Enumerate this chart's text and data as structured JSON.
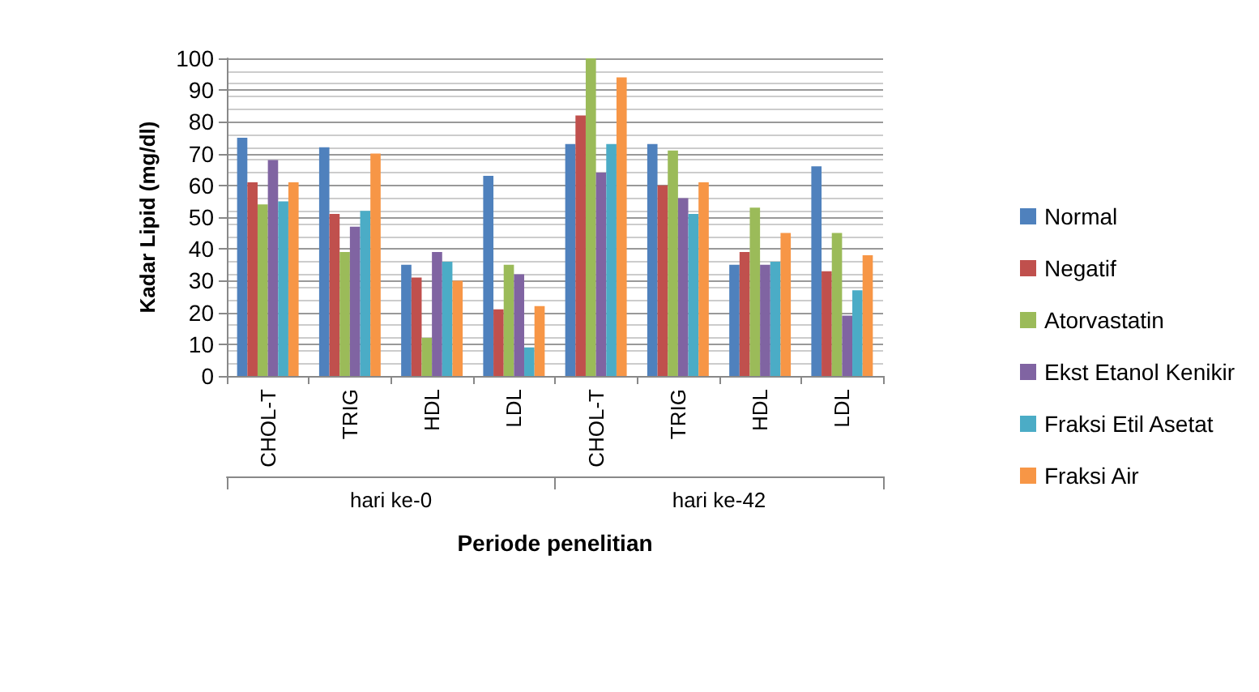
{
  "chart_data": {
    "type": "bar",
    "xlabel": "Periode penelitian",
    "ylabel": "Kadar Lipid (mg/dl)",
    "categories": [
      "CHOL-T",
      "TRIG",
      "HDL",
      "LDL",
      "CHOL-T",
      "TRIG",
      "HDL",
      "LDL"
    ],
    "annotations": [
      "hari ke-0",
      "hari ke-42"
    ],
    "series": [
      {
        "name": "Normal",
        "color": "#4f81bd",
        "values": [
          75,
          72,
          35,
          63,
          73,
          73,
          35,
          66
        ]
      },
      {
        "name": "Negatif",
        "color": "#c0504d",
        "values": [
          61,
          51,
          31,
          21,
          82,
          60,
          39,
          33
        ]
      },
      {
        "name": "Atorvastatin",
        "color": "#9bbb59",
        "values": [
          54,
          39,
          12,
          35,
          100,
          71,
          53,
          45
        ]
      },
      {
        "name": "Ekst Etanol Kenikir",
        "color": "#8064a2",
        "values": [
          68,
          47,
          39,
          32,
          64,
          56,
          35,
          19
        ]
      },
      {
        "name": "Fraksi Etil Asetat",
        "color": "#4bacc6",
        "values": [
          55,
          52,
          36,
          9,
          73,
          51,
          36,
          27
        ]
      },
      {
        "name": "Fraksi Air",
        "color": "#f79646",
        "values": [
          61,
          70,
          30,
          22,
          94,
          61,
          45,
          38
        ]
      }
    ],
    "ylim": [
      0,
      100
    ],
    "yticks": [
      0,
      10,
      20,
      30,
      40,
      50,
      60,
      70,
      80,
      90,
      100
    ],
    "grid": "y",
    "legend": "right"
  }
}
